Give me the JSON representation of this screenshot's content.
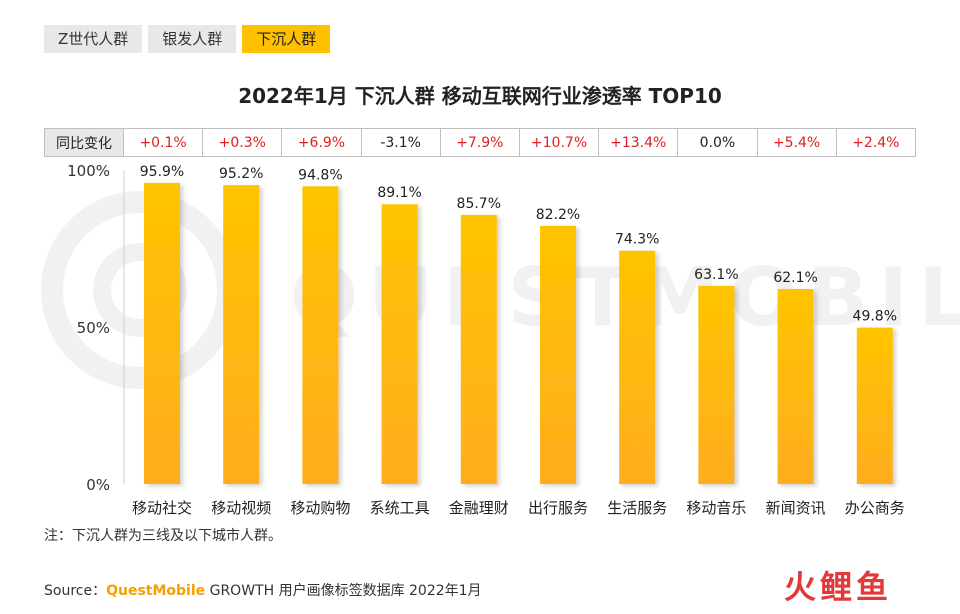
{
  "tabs": [
    {
      "label": "Z世代人群",
      "active": false
    },
    {
      "label": "银发人群",
      "active": false
    },
    {
      "label": "下沉人群",
      "active": true
    }
  ],
  "yoy_header": "同比变化",
  "yoy": [
    "+0.1%",
    "+0.3%",
    "+6.9%",
    "-3.1%",
    "+7.9%",
    "+10.7%",
    "+13.4%",
    "0.0%",
    "+5.4%",
    "+2.4%"
  ],
  "note": "注：下沉人群为三线及以下城市人群。",
  "source": {
    "prefix": "Source：",
    "brand": "QuestMobile",
    "rest": " GROWTH 用户画像标签数据库 2022年1月"
  },
  "watermark": "QUESTMOBILE",
  "logo_text": "火鲤鱼",
  "colors": {
    "bar_top": "#ffc400",
    "bar_bottom": "#ffad1f",
    "positive": "#e02020",
    "tab_active": "#ffc000"
  },
  "chart_data": {
    "type": "bar",
    "title": "2022年1月 下沉人群 移动互联网行业渗透率 TOP10",
    "categories": [
      "移动社交",
      "移动视频",
      "移动购物",
      "系统工具",
      "金融理财",
      "出行服务",
      "生活服务",
      "移动音乐",
      "新闻资讯",
      "办公商务"
    ],
    "values": [
      95.9,
      95.2,
      94.8,
      89.1,
      85.7,
      82.2,
      74.3,
      63.1,
      62.1,
      49.8
    ],
    "data_labels": [
      "95.9%",
      "95.2%",
      "94.8%",
      "89.1%",
      "85.7%",
      "82.2%",
      "74.3%",
      "63.1%",
      "62.1%",
      "49.8%"
    ],
    "yticks": [
      0,
      50,
      100
    ],
    "ytick_labels": [
      "0%",
      "50%",
      "100%"
    ],
    "ylim": [
      0,
      100
    ],
    "xlabel": "",
    "ylabel": "",
    "grid": false,
    "legend": "none"
  }
}
